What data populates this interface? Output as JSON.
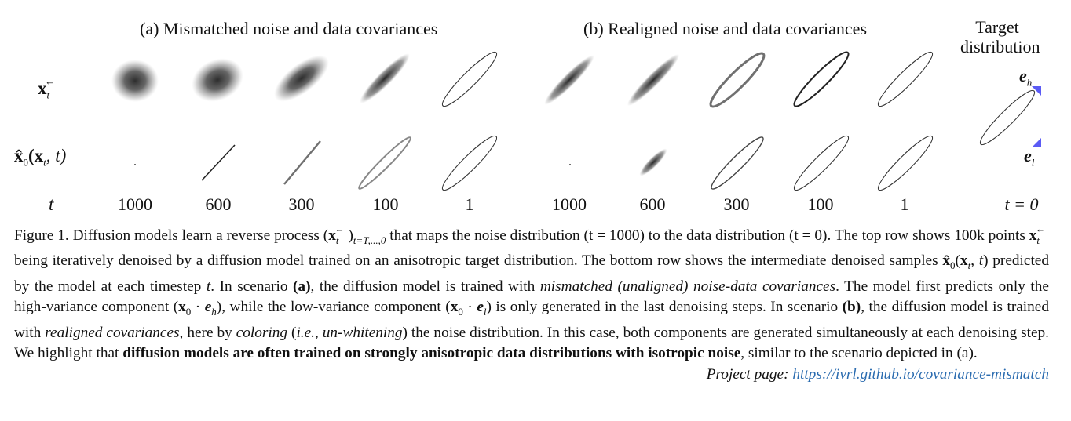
{
  "header_a": "(a) Mismatched noise and data covariances",
  "header_b": "(b) Realigned noise and data covariances",
  "header_target_line1": "Target",
  "header_target_line2": "distribution",
  "row_label_top": "x",
  "row_label_top_sub": "t",
  "row_label_top_sup": "←",
  "row_label_bottom_hat": "x̂",
  "row_label_bottom_sub": "0",
  "row_label_bottom_args": "(x",
  "row_label_bottom_args2": ", t)",
  "row_label_t": "t",
  "timesteps_a": [
    "1000",
    "600",
    "300",
    "100",
    "1"
  ],
  "timesteps_b": [
    "1000",
    "600",
    "300",
    "100",
    "1"
  ],
  "target_t": "t = 0",
  "axis_eh": "e",
  "axis_eh_sub": "h",
  "axis_el": "e",
  "axis_el_sub": "l",
  "accent_color": "#5b5bf5",
  "caption": {
    "figure_label": "Figure 1.",
    "s1a": "Diffusion models learn a reverse process (",
    "s1b": ")",
    "s1sub": "t=T,...,0",
    "s1c": " that maps the noise distribution (t = 1000) to the data distribution (t = 0).",
    "s2a": "The top row shows 100k points ",
    "s2b": " being iteratively denoised by a diffusion model trained on an anisotropic target distribution. The bottom row shows the intermediate denoised samples ",
    "s2c": " predicted by the model at each timestep ",
    "s2d": "t",
    "s2e": ". In scenario ",
    "s2f": "(a)",
    "s2g": ", the diffusion model is trained with ",
    "s2h": "mismatched (unaligned) noise-data covariances",
    "s2i": ". The model first predicts only the high-variance component (",
    "s2j": " · ",
    "s2k": "), while the low-variance component (",
    "s2l": ") is only generated in the last denoising steps. In scenario ",
    "s2m": "(b)",
    "s2n": ", the diffusion model is trained with ",
    "s2o": "realigned covariances",
    "s2p": ", here by ",
    "s2q": "coloring",
    "s2r": " (",
    "s2s": "i.e.",
    "s2t": ", ",
    "s2u": "un-whitening",
    "s2v": ") the noise distribution. In this case, both components are generated simultaneously at each denoising step. We highlight that ",
    "s2w": "diffusion models are often trained on strongly anisotropic data distributions with isotropic noise",
    "s2x": ", similar to the scenario depicted in (a).",
    "project_label": "Project page:",
    "project_url": "https://ivrl.github.io/covariance-mismatch"
  }
}
